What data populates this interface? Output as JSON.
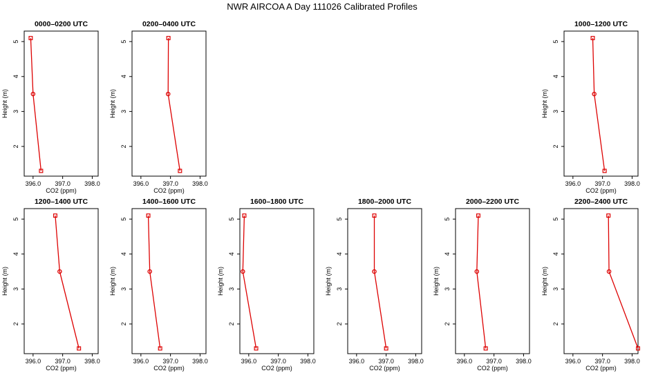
{
  "figure_title": "NWR AIRCOA A  Day 111026  Calibrated Profiles",
  "colors": {
    "series": "#dd0000",
    "axis": "#000000",
    "background": "#ffffff"
  },
  "chart_data": [
    {
      "type": "line",
      "title": "0000–0200 UTC",
      "xlabel": "CO2 (ppm)",
      "ylabel": "Height (m)",
      "xlim": [
        395.7,
        398.2
      ],
      "ylim": [
        1.15,
        5.3
      ],
      "xticks": [
        "396.0",
        "397.0",
        "398.0"
      ],
      "yticks": [
        "2",
        "3",
        "4",
        "5"
      ],
      "series": [
        {
          "points": [
            [
              395.92,
              5.1
            ],
            [
              396.0,
              3.5
            ],
            [
              396.27,
              1.3
            ]
          ]
        }
      ]
    },
    {
      "type": "line",
      "title": "0200–0400 UTC",
      "xlabel": "CO2 (ppm)",
      "ylabel": "Height (m)",
      "xlim": [
        395.7,
        398.2
      ],
      "ylim": [
        1.15,
        5.3
      ],
      "xticks": [
        "396.0",
        "397.0",
        "398.0"
      ],
      "yticks": [
        "2",
        "3",
        "4",
        "5"
      ],
      "series": [
        {
          "points": [
            [
              396.93,
              5.1
            ],
            [
              396.92,
              3.5
            ],
            [
              397.32,
              1.3
            ]
          ]
        }
      ]
    },
    {
      "type": "line",
      "title": "1000–1200 UTC",
      "xlabel": "CO2 (ppm)",
      "ylabel": "Height (m)",
      "xlim": [
        395.7,
        398.2
      ],
      "ylim": [
        1.15,
        5.3
      ],
      "xticks": [
        "396.0",
        "397.0",
        "398.0"
      ],
      "yticks": [
        "2",
        "3",
        "4",
        "5"
      ],
      "series": [
        {
          "points": [
            [
              396.67,
              5.1
            ],
            [
              396.72,
              3.5
            ],
            [
              397.07,
              1.3
            ]
          ]
        }
      ]
    },
    {
      "type": "line",
      "title": "1200–1400 UTC",
      "xlabel": "CO2 (ppm)",
      "ylabel": "Height (m)",
      "xlim": [
        395.7,
        398.2
      ],
      "ylim": [
        1.15,
        5.3
      ],
      "xticks": [
        "396.0",
        "397.0",
        "398.0"
      ],
      "yticks": [
        "2",
        "3",
        "4",
        "5"
      ],
      "series": [
        {
          "points": [
            [
              396.75,
              5.1
            ],
            [
              396.9,
              3.5
            ],
            [
              397.55,
              1.3
            ]
          ]
        }
      ]
    },
    {
      "type": "line",
      "title": "1400–1600 UTC",
      "xlabel": "CO2 (ppm)",
      "ylabel": "Height (m)",
      "xlim": [
        395.7,
        398.2
      ],
      "ylim": [
        1.15,
        5.3
      ],
      "xticks": [
        "396.0",
        "397.0",
        "398.0"
      ],
      "yticks": [
        "2",
        "3",
        "4",
        "5"
      ],
      "series": [
        {
          "points": [
            [
              396.25,
              5.1
            ],
            [
              396.3,
              3.5
            ],
            [
              396.65,
              1.3
            ]
          ]
        }
      ]
    },
    {
      "type": "line",
      "title": "1600–1800 UTC",
      "xlabel": "CO2 (ppm)",
      "ylabel": "Height (m)",
      "xlim": [
        395.7,
        398.2
      ],
      "ylim": [
        1.15,
        5.3
      ],
      "xticks": [
        "396.0",
        "397.0",
        "398.0"
      ],
      "yticks": [
        "2",
        "3",
        "4",
        "5"
      ],
      "series": [
        {
          "points": [
            [
              395.85,
              5.1
            ],
            [
              395.8,
              3.5
            ],
            [
              396.25,
              1.3
            ]
          ]
        }
      ]
    },
    {
      "type": "line",
      "title": "1800–2000 UTC",
      "xlabel": "CO2 (ppm)",
      "ylabel": "Height (m)",
      "xlim": [
        395.7,
        398.2
      ],
      "ylim": [
        1.15,
        5.3
      ],
      "xticks": [
        "396.0",
        "397.0",
        "398.0"
      ],
      "yticks": [
        "2",
        "3",
        "4",
        "5"
      ],
      "series": [
        {
          "points": [
            [
              396.6,
              5.1
            ],
            [
              396.6,
              3.5
            ],
            [
              397.0,
              1.3
            ]
          ]
        }
      ]
    },
    {
      "type": "line",
      "title": "2000–2200 UTC",
      "xlabel": "CO2 (ppm)",
      "ylabel": "Height (m)",
      "xlim": [
        395.7,
        398.2
      ],
      "ylim": [
        1.15,
        5.3
      ],
      "xticks": [
        "396.0",
        "397.0",
        "398.0"
      ],
      "yticks": [
        "2",
        "3",
        "4",
        "5"
      ],
      "series": [
        {
          "points": [
            [
              396.47,
              5.1
            ],
            [
              396.42,
              3.5
            ],
            [
              396.72,
              1.3
            ]
          ]
        }
      ]
    },
    {
      "type": "line",
      "title": "2200–2400 UTC",
      "xlabel": "CO2 (ppm)",
      "ylabel": "Height (m)",
      "xlim": [
        395.7,
        398.2
      ],
      "ylim": [
        1.15,
        5.3
      ],
      "xticks": [
        "396.0",
        "397.0",
        "398.0"
      ],
      "yticks": [
        "2",
        "3",
        "4",
        "5"
      ],
      "series": [
        {
          "points": [
            [
              397.2,
              5.1
            ],
            [
              397.22,
              3.5
            ],
            [
              398.2,
              1.3
            ]
          ]
        }
      ]
    }
  ]
}
